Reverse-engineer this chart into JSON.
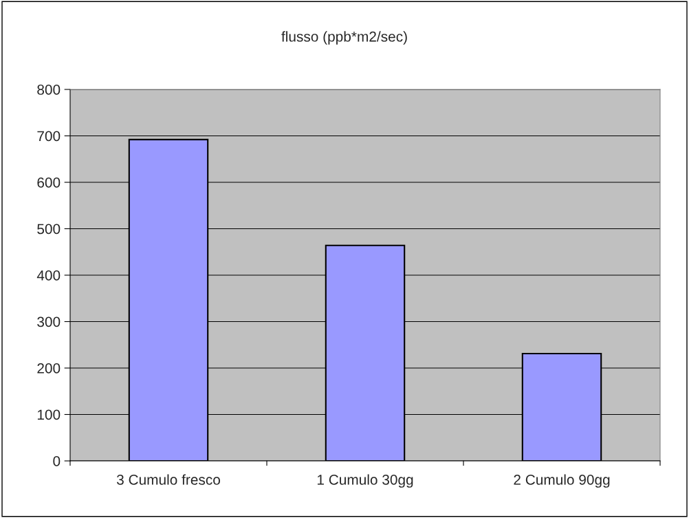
{
  "chart_data": {
    "type": "bar",
    "title": "flusso (ppb*m2/sec)",
    "categories": [
      "3 Cumulo fresco",
      "1 Cumulo 30gg",
      "2 Cumulo 90gg"
    ],
    "values": [
      692,
      464,
      231
    ],
    "color": "#9999ff",
    "ylim": [
      0,
      800
    ],
    "yticks": [
      0,
      100,
      200,
      300,
      400,
      500,
      600,
      700,
      800
    ],
    "grid": "y",
    "legend": false
  }
}
